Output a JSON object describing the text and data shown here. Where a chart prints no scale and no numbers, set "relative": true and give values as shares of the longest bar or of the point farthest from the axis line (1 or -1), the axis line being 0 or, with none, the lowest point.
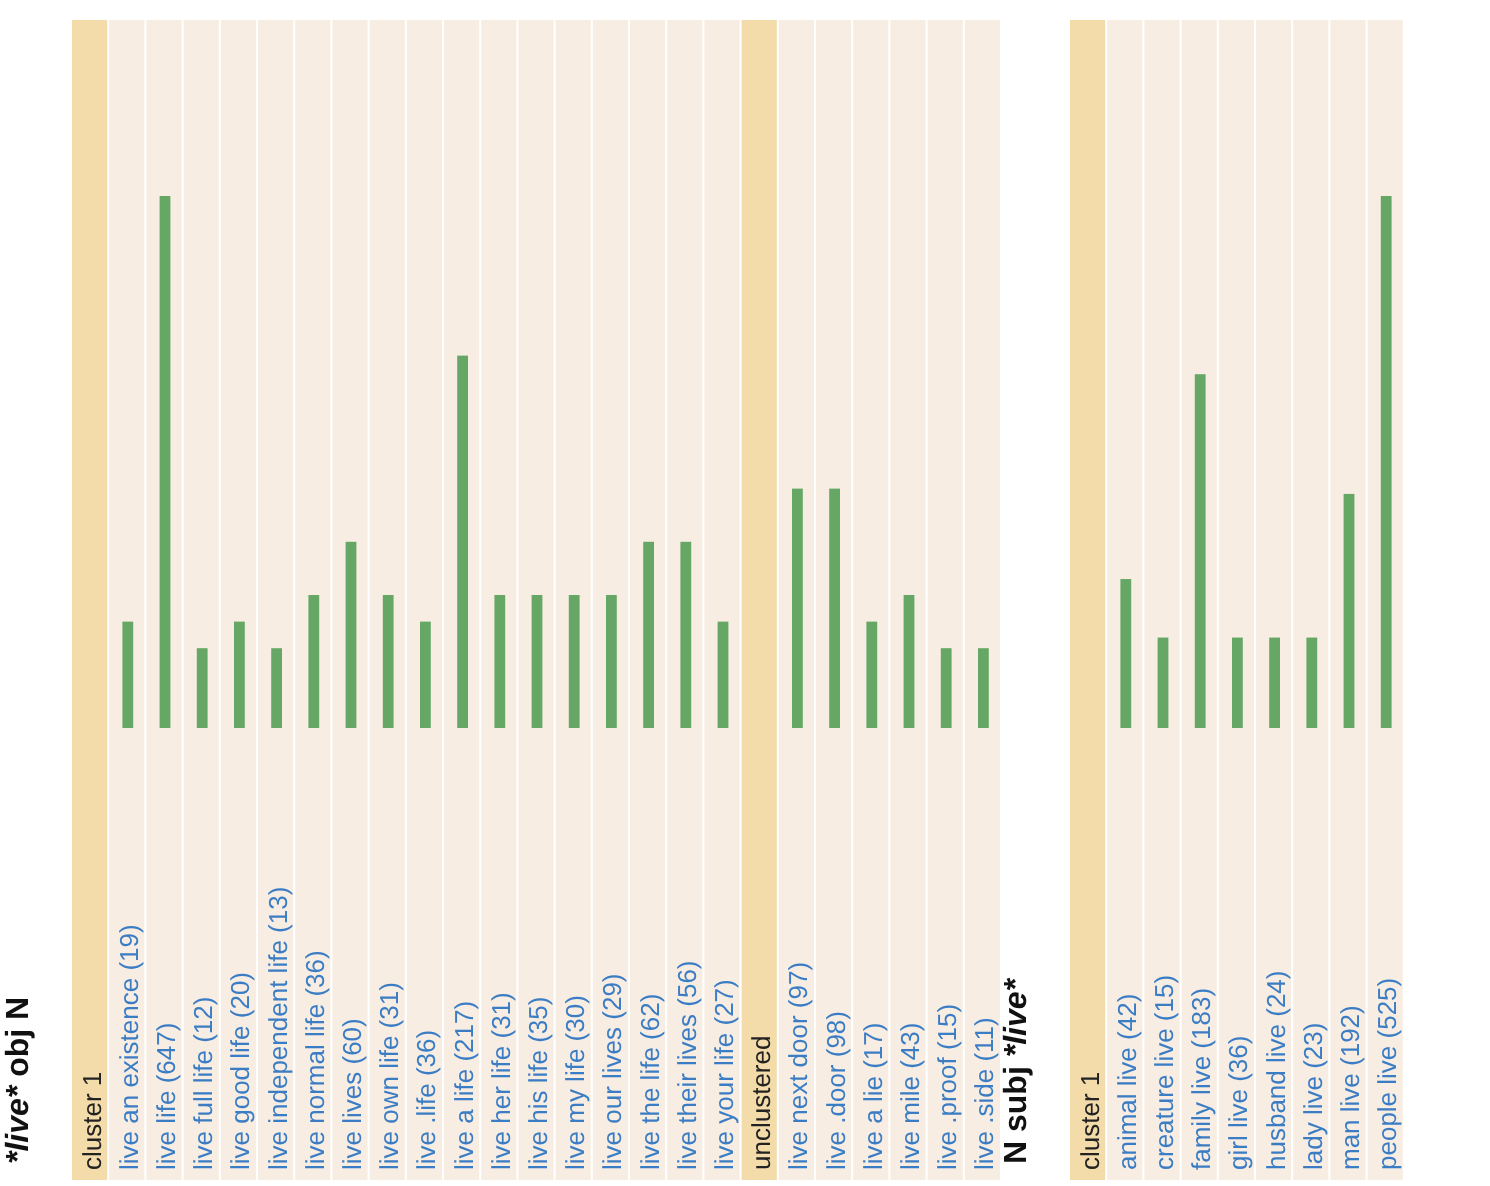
{
  "chart_data": [
    {
      "type": "bar",
      "relative": true,
      "title": "*live* obj N",
      "color": "#67a766",
      "categories": [
        "cluster 1",
        "live an existence (19)",
        "live life (647)",
        "live full life (12)",
        "live good life (20)",
        "live independent life (13)",
        "live normal life (36)",
        "live lives (60)",
        "live own life (31)",
        "live .life (36)",
        "live a life (217)",
        "live her life (31)",
        "live his life (35)",
        "live my life (30)",
        "live our lives (29)",
        "live the life (62)",
        "live their lives (56)",
        "live your life (27)",
        "unclustered",
        "live next door (97)",
        "live .door (98)",
        "live a lie (17)",
        "live mile (43)",
        "live .proof (15)",
        "live .side (11)"
      ],
      "values": [
        null,
        0.2,
        1,
        0.15,
        0.2,
        0.15,
        0.25,
        0.35,
        0.25,
        0.2,
        0.7,
        0.25,
        0.25,
        0.25,
        0.25,
        0.35,
        0.35,
        0.2,
        null,
        0.45,
        0.45,
        0.2,
        0.25,
        0.15,
        0.15
      ]
    },
    {
      "type": "bar",
      "relative": true,
      "title": "N subj *live*",
      "color": "#67a766",
      "categories": [
        "cluster 1",
        "animal live (42)",
        "creature live (15)",
        "family live (183)",
        "girl live (36)",
        "husband live (24)",
        "lady live (23)",
        "man live (192)",
        "people live (525)"
      ],
      "values": [
        null,
        0.28,
        0.17,
        0.665,
        0.17,
        0.17,
        0.17,
        0.44,
        1
      ]
    }
  ]
}
